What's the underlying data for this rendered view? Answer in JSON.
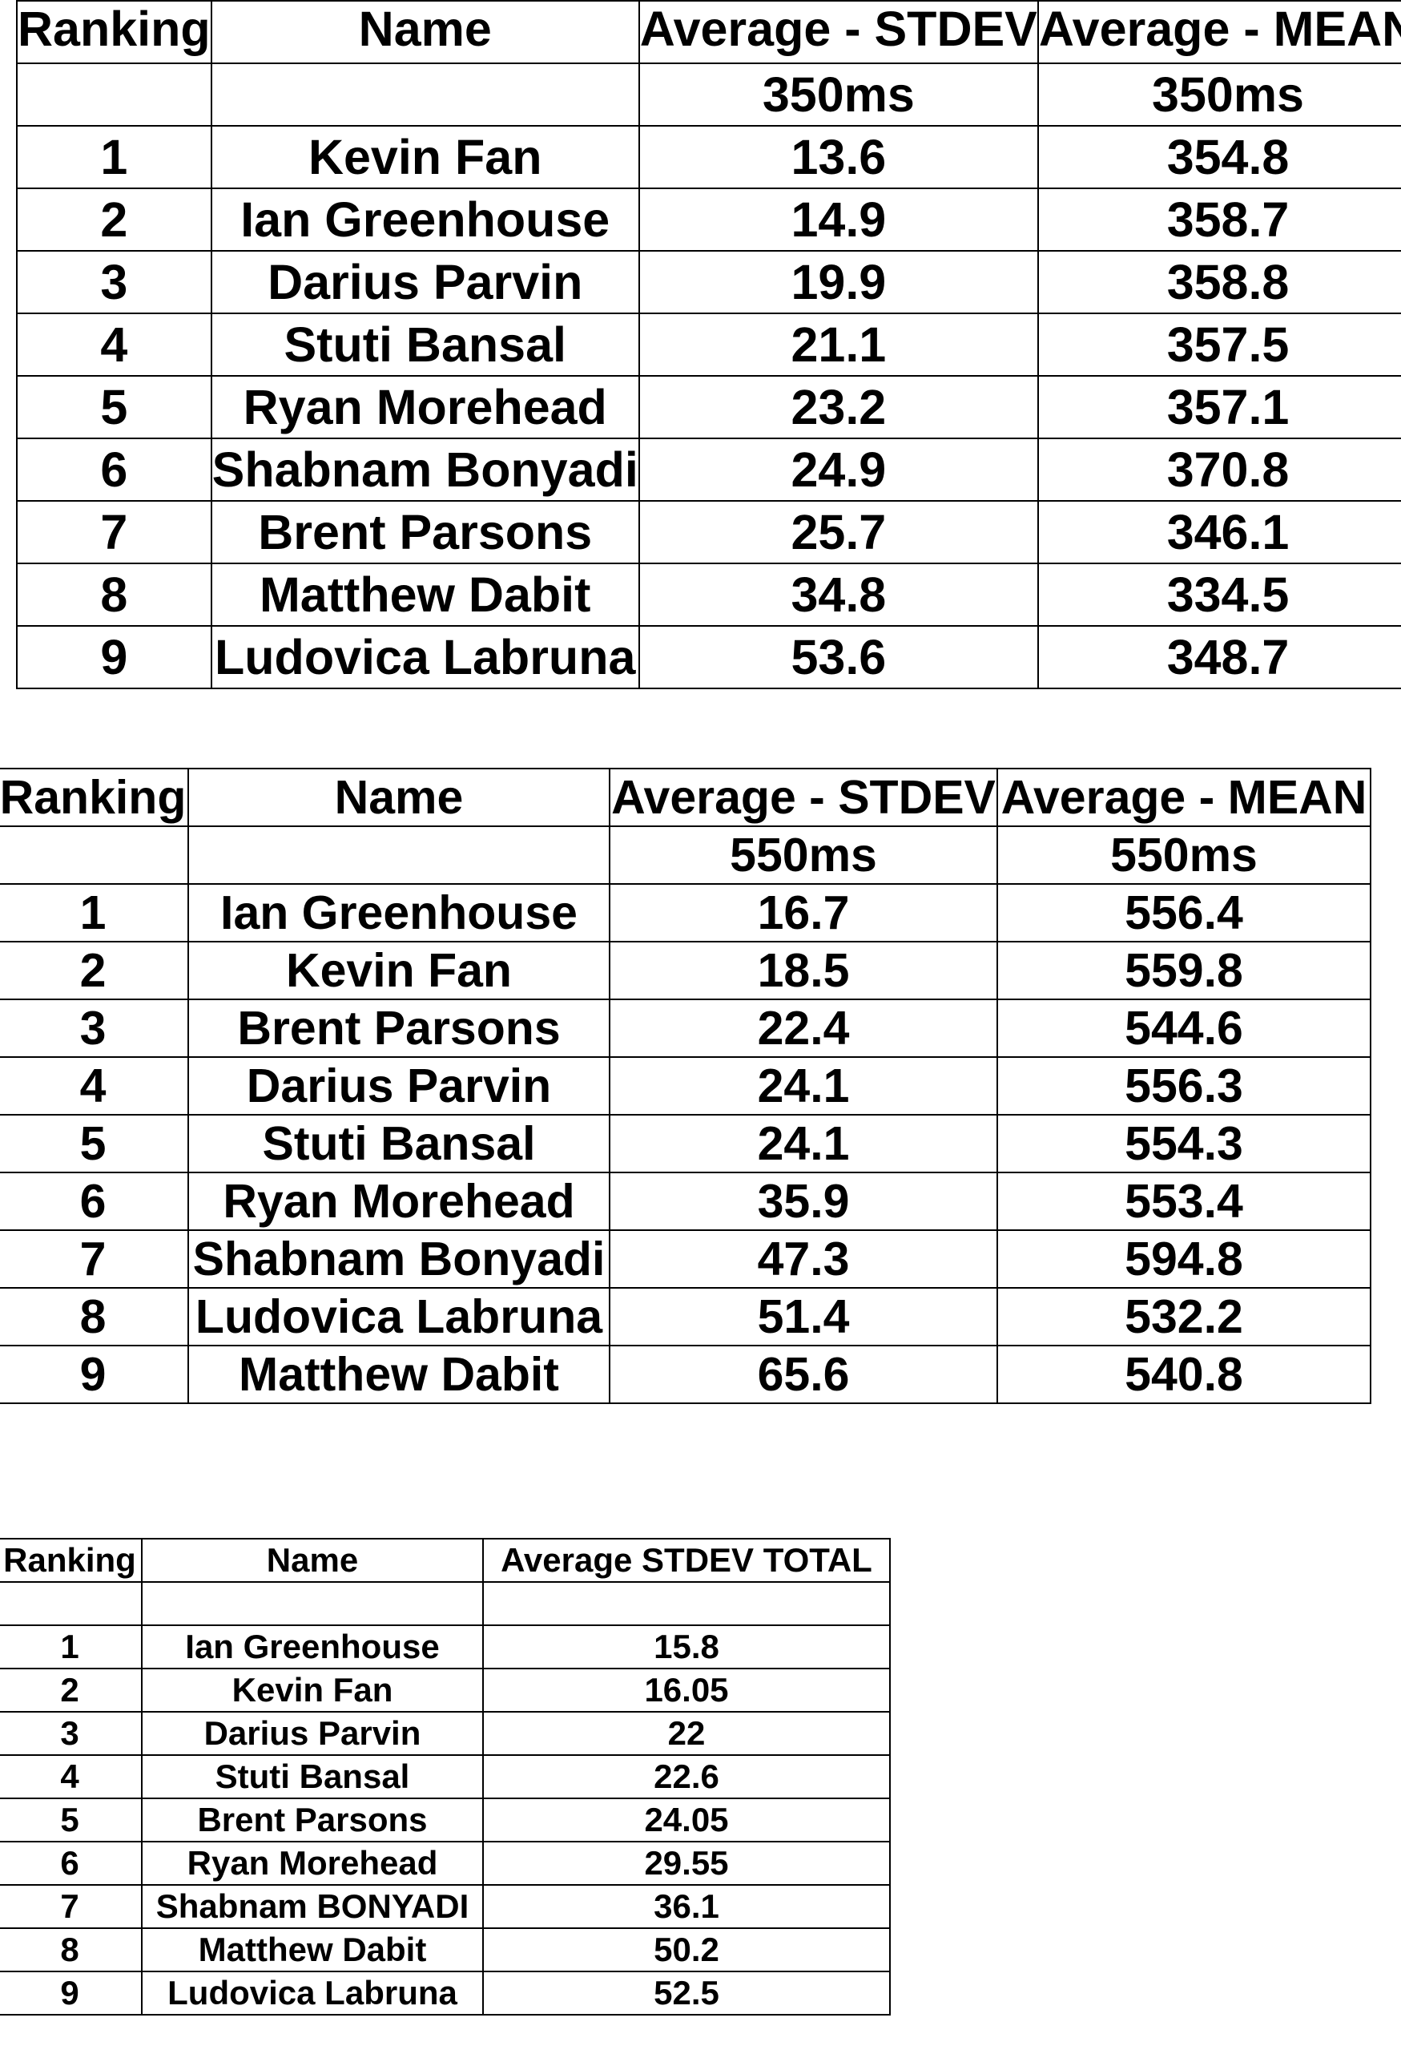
{
  "tables": [
    {
      "header": [
        "Ranking",
        "Name",
        "Average - STDEV",
        "Average - MEAN"
      ],
      "subheader": [
        "",
        "",
        "350ms",
        "350ms"
      ],
      "rows": [
        [
          "1",
          "Kevin Fan",
          "13.6",
          "354.8"
        ],
        [
          "2",
          "Ian Greenhouse",
          "14.9",
          "358.7"
        ],
        [
          "3",
          "Darius Parvin",
          "19.9",
          "358.8"
        ],
        [
          "4",
          "Stuti Bansal",
          "21.1",
          "357.5"
        ],
        [
          "5",
          "Ryan Morehead",
          "23.2",
          "357.1"
        ],
        [
          "6",
          "Shabnam Bonyadi",
          "24.9",
          "370.8"
        ],
        [
          "7",
          "Brent Parsons",
          "25.7",
          "346.1"
        ],
        [
          "8",
          "Matthew Dabit",
          "34.8",
          "334.5"
        ],
        [
          "9",
          "Ludovica Labruna",
          "53.6",
          "348.7"
        ]
      ]
    },
    {
      "header": [
        "Ranking",
        "Name",
        "Average - STDEV",
        "Average - MEAN"
      ],
      "subheader": [
        "",
        "",
        "550ms",
        "550ms"
      ],
      "rows": [
        [
          "1",
          "Ian Greenhouse",
          "16.7",
          "556.4"
        ],
        [
          "2",
          "Kevin Fan",
          "18.5",
          "559.8"
        ],
        [
          "3",
          "Brent Parsons",
          "22.4",
          "544.6"
        ],
        [
          "4",
          "Darius Parvin",
          "24.1",
          "556.3"
        ],
        [
          "5",
          "Stuti Bansal",
          "24.1",
          "554.3"
        ],
        [
          "6",
          "Ryan Morehead",
          "35.9",
          "553.4"
        ],
        [
          "7",
          "Shabnam Bonyadi",
          "47.3",
          "594.8"
        ],
        [
          "8",
          "Ludovica Labruna",
          "51.4",
          "532.2"
        ],
        [
          "9",
          "Matthew Dabit",
          "65.6",
          "540.8"
        ]
      ]
    },
    {
      "header": [
        "Ranking",
        "Name",
        "Average STDEV TOTAL"
      ],
      "subheader": [
        "",
        "",
        ""
      ],
      "rows": [
        [
          "1",
          "Ian Greenhouse",
          "15.8"
        ],
        [
          "2",
          "Kevin Fan",
          "16.05"
        ],
        [
          "3",
          "Darius Parvin",
          "22"
        ],
        [
          "4",
          "Stuti Bansal",
          "22.6"
        ],
        [
          "5",
          "Brent Parsons",
          "24.05"
        ],
        [
          "6",
          "Ryan Morehead",
          "29.55"
        ],
        [
          "7",
          "Shabnam BONYADI",
          "36.1"
        ],
        [
          "8",
          "Matthew Dabit",
          "50.2"
        ],
        [
          "9",
          "Ludovica Labruna",
          "52.5"
        ]
      ]
    }
  ]
}
